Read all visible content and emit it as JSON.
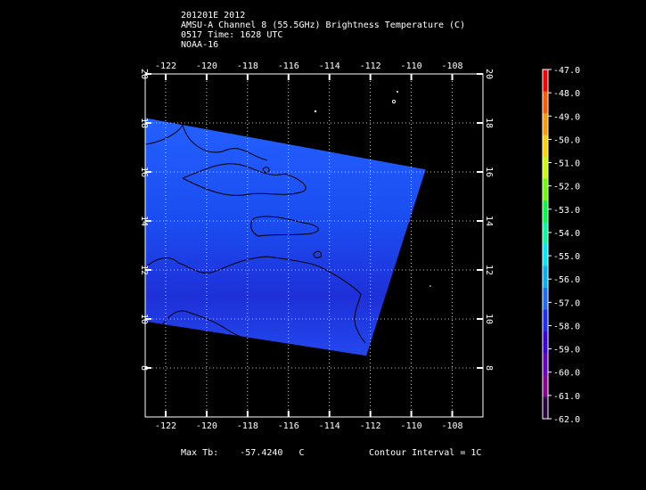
{
  "header": {
    "line1": "201201E 2012",
    "line2": "AMSU-A Channel 8 (55.5GHz) Brightness Temperature (C)",
    "line3": "0517 Time: 1628 UTC",
    "line4": "NOAA-16"
  },
  "map": {
    "lon_range": [
      -123,
      -106.5
    ],
    "lat_range": [
      6,
      20
    ],
    "lon_ticks": [
      -122,
      -120,
      -118,
      -116,
      -114,
      -112,
      -110,
      -108
    ],
    "lat_ticks": [
      8,
      10,
      12,
      14,
      16,
      18,
      20
    ],
    "lon_labels": [
      "-122",
      "-120",
      "-118",
      "-116",
      "-114",
      "-112",
      "-110",
      "-108"
    ],
    "lat_labels": [
      "8",
      "10",
      "12",
      "14",
      "16",
      "18",
      "20"
    ],
    "swath_corners_lonlat": [
      [
        -123,
        18.2
      ],
      [
        -109.3,
        16.1
      ],
      [
        -112.2,
        8.5
      ],
      [
        -123,
        9.9
      ]
    ],
    "colors": {
      "background": "#000000",
      "swath_main": "#1a4cff",
      "swath_dark": "#1f2fd6",
      "contour": "#000000",
      "grid": "#ffffff"
    }
  },
  "colorbar": {
    "labels": [
      "-47.0",
      "-48.0",
      "-49.0",
      "-50.0",
      "-51.0",
      "-52.0",
      "-53.0",
      "-54.0",
      "-55.0",
      "-56.0",
      "-57.0",
      "-58.0",
      "-59.0",
      "-60.0",
      "-61.0",
      "-62.0"
    ],
    "colors": [
      "#ff0000",
      "#ff5a00",
      "#ff9a00",
      "#ffd000",
      "#c8ff00",
      "#6aff00",
      "#00ff40",
      "#00ffa0",
      "#00e8ff",
      "#00b0ff",
      "#1a6cff",
      "#1a2cff",
      "#3a00e0",
      "#6a00c0",
      "#8a0090",
      "#2a0040"
    ]
  },
  "footer": {
    "max_label": "Max Tb:",
    "max_value": "-57.4240",
    "max_unit": "C",
    "contour_text": "Contour Interval = 1C"
  }
}
